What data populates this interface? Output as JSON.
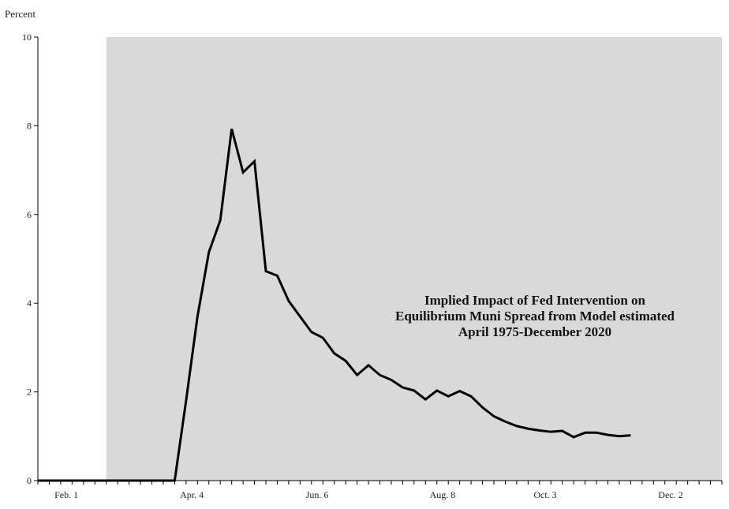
{
  "chart_data": {
    "type": "line",
    "ylabel": "Percent",
    "ylim": [
      0,
      10
    ],
    "yticks": [
      0,
      2,
      4,
      6,
      8,
      10
    ],
    "x_tick_labels": [
      "Feb. 1",
      "Apr. 4",
      "Jun. 6",
      "Aug. 8",
      "Oct. 3",
      "Dec. 2"
    ],
    "x_tick_label_weeks": [
      2.5,
      13.5,
      24.5,
      35.5,
      44.5,
      55.5
    ],
    "xlim": [
      0,
      60
    ],
    "shaded_region_weeks": [
      6,
      60
    ],
    "shade_color": "#d9d9d9",
    "line_color": "#000000",
    "annotation": [
      "Implied Impact of Fed Intervention on",
      "Equilibrium Muni Spread from Model estimated",
      "April 1975-December 2020"
    ],
    "series": [
      {
        "x": [
          0,
          1,
          2,
          3,
          4,
          5,
          6,
          7,
          8,
          9,
          10,
          11,
          12,
          13,
          14,
          15,
          16,
          17,
          18,
          19,
          20,
          21,
          22,
          23,
          24,
          25,
          26,
          27,
          28,
          29,
          30,
          31,
          32,
          33,
          34,
          35,
          36,
          37,
          38,
          39,
          40,
          41,
          42,
          43,
          44,
          45,
          46,
          47,
          48,
          49,
          50,
          51,
          52,
          53,
          54,
          55,
          56,
          57,
          58,
          59
        ],
        "values": [
          0,
          0,
          0,
          0,
          0,
          0,
          0,
          0,
          0,
          0,
          0,
          0,
          0,
          1.8,
          3.7,
          5.15,
          5.87,
          7.93,
          6.95,
          7.2,
          4.72,
          4.62,
          4.05,
          3.7,
          3.35,
          3.22,
          2.87,
          2.7,
          2.38,
          2.6,
          2.38,
          2.27,
          2.1,
          2.03,
          1.83,
          2.03,
          1.9,
          2.02,
          1.9,
          1.65,
          1.45,
          1.33,
          1.23,
          1.17,
          1.13,
          1.1,
          1.12,
          0.98,
          1.08,
          1.08,
          1.03,
          1.0,
          1.02,
          null,
          null,
          null,
          null,
          null,
          null,
          null
        ]
      }
    ]
  }
}
